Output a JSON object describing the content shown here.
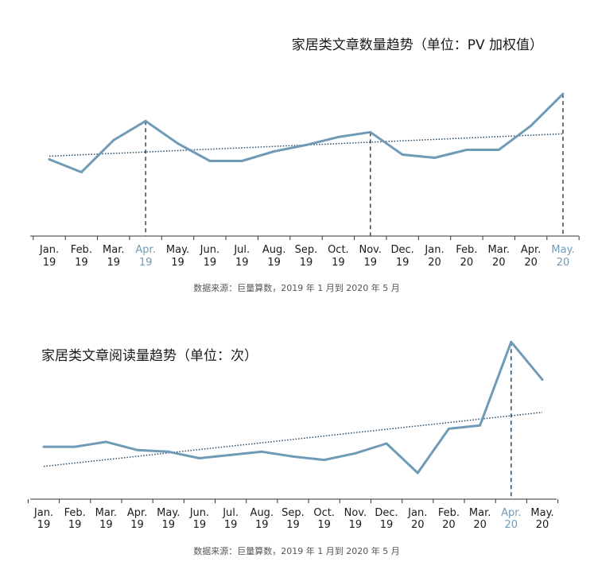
{
  "colors": {
    "line": "#6f9bb7",
    "trend": "#2b4a63",
    "axis": "#333333",
    "highlight": "#6f9bb7",
    "text": "#1a1a1a"
  },
  "chart_data": [
    {
      "type": "line",
      "title": "家居类文章数量趋势（单位：PV 加权值）",
      "source": "数据来源：巨量算数，2019 年 1 月到 2020 年 5 月",
      "categories": [
        [
          "Jan.",
          "19"
        ],
        [
          "Feb.",
          "19"
        ],
        [
          "Mar.",
          "19"
        ],
        [
          "Apr.",
          "19"
        ],
        [
          "May.",
          "19"
        ],
        [
          "Jun.",
          "19"
        ],
        [
          "Jul.",
          "19"
        ],
        [
          "Aug.",
          "19"
        ],
        [
          "Sep.",
          "19"
        ],
        [
          "Oct.",
          "19"
        ],
        [
          "Nov.",
          "19"
        ],
        [
          "Dec.",
          "19"
        ],
        [
          "Jan.",
          "20"
        ],
        [
          "Feb.",
          "20"
        ],
        [
          "Mar.",
          "20"
        ],
        [
          "Apr.",
          "20"
        ],
        [
          "May.",
          "20"
        ]
      ],
      "values": [
        48,
        40,
        60,
        72,
        58,
        47,
        47,
        53,
        57,
        62,
        65,
        51,
        49,
        54,
        54,
        69,
        89
      ],
      "trendline": [
        50,
        64
      ],
      "highlight": [
        3,
        16
      ],
      "markers": [
        3,
        10,
        16
      ],
      "ylim": [
        0,
        100
      ],
      "grid": false
    },
    {
      "type": "line",
      "title": "家居类文章阅读量趋势（单位：次）",
      "source": "数据来源：巨量算数，2019 年 1 月到 2020 年 5 月",
      "categories": [
        [
          "Jan.",
          "19"
        ],
        [
          "Feb.",
          "19"
        ],
        [
          "Mar.",
          "19"
        ],
        [
          "Apr.",
          "19"
        ],
        [
          "May.",
          "19"
        ],
        [
          "Jun.",
          "19"
        ],
        [
          "Jul.",
          "19"
        ],
        [
          "Aug.",
          "19"
        ],
        [
          "Sep.",
          "19"
        ],
        [
          "Oct.",
          "19"
        ],
        [
          "Nov.",
          "19"
        ],
        [
          "Dec.",
          "19"
        ],
        [
          "Jan.",
          "20"
        ],
        [
          "Feb.",
          "20"
        ],
        [
          "Mar.",
          "20"
        ],
        [
          "Apr.",
          "20"
        ],
        [
          "May.",
          "20"
        ]
      ],
      "values": [
        32,
        32,
        35,
        30,
        29,
        25,
        27,
        29,
        26,
        24,
        28,
        34,
        16,
        43,
        45,
        96,
        73
      ],
      "trendline": [
        20,
        53
      ],
      "highlight": [
        15
      ],
      "markers": [
        15
      ],
      "ylim": [
        0,
        100
      ],
      "grid": false
    }
  ]
}
